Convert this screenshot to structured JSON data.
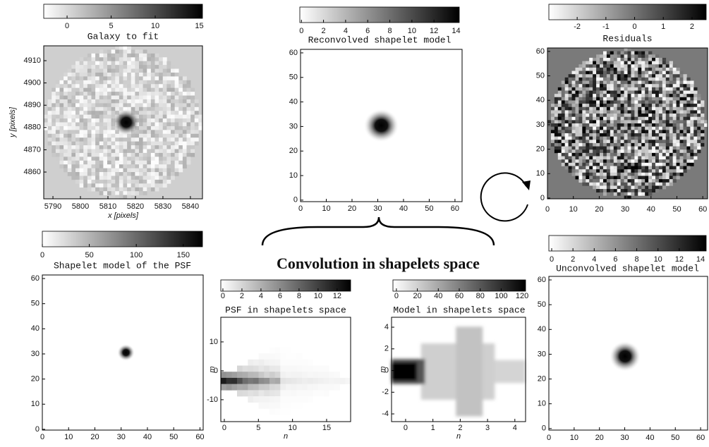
{
  "caption": "Convolution in shapelets space",
  "panels": [
    {
      "title": "Galaxy to fit",
      "colorbar_ticks": [
        0,
        5,
        10,
        15
      ],
      "xticks": [
        5790,
        5800,
        5810,
        5820,
        5830,
        5840
      ],
      "yticks": [
        4860,
        4870,
        4880,
        4890,
        4900,
        4910
      ],
      "xlabel": "x [pixels]",
      "ylabel": "y [pixels]"
    },
    {
      "title": "Reconvolved shapelet model",
      "colorbar_ticks": [
        0,
        2,
        4,
        6,
        8,
        10,
        12,
        14
      ],
      "xticks": [
        0,
        10,
        20,
        30,
        40,
        50,
        60
      ],
      "yticks": [
        0,
        10,
        20,
        30,
        40,
        50,
        60
      ]
    },
    {
      "title": "Residuals",
      "colorbar_ticks": [
        -2,
        -1,
        0,
        1,
        2
      ],
      "xticks": [
        0,
        10,
        20,
        30,
        40,
        50,
        60
      ],
      "yticks": [
        0,
        10,
        20,
        30,
        40,
        50,
        60
      ]
    },
    {
      "title": "Shapelet model of the PSF",
      "colorbar_ticks": [
        0,
        50,
        100,
        150
      ],
      "xticks": [
        0,
        10,
        20,
        30,
        40,
        50,
        60
      ],
      "yticks": [
        0,
        10,
        20,
        30,
        40,
        50,
        60
      ]
    },
    {
      "title": "PSF in shapelets space",
      "colorbar_ticks": [
        0,
        2,
        4,
        6,
        8,
        10,
        12
      ],
      "xticks": [
        0,
        5,
        10,
        15
      ],
      "yticks": [
        -10,
        0,
        10
      ],
      "xlabel": "n",
      "ylabel": "m"
    },
    {
      "title": "Model in shapelets space",
      "colorbar_ticks": [
        0,
        20,
        40,
        60,
        80,
        100,
        120
      ],
      "xticks": [
        0,
        1,
        2,
        3,
        4
      ],
      "yticks": [
        -4,
        -2,
        0,
        2,
        4
      ],
      "xlabel": "n",
      "ylabel": "m"
    },
    {
      "title": "Unconvolved shapelet model",
      "colorbar_ticks": [
        0,
        2,
        4,
        6,
        8,
        10,
        12,
        14
      ],
      "xticks": [
        0,
        10,
        20,
        30,
        40,
        50,
        60
      ],
      "yticks": [
        0,
        10,
        20,
        30,
        40,
        50,
        60
      ]
    }
  ]
}
